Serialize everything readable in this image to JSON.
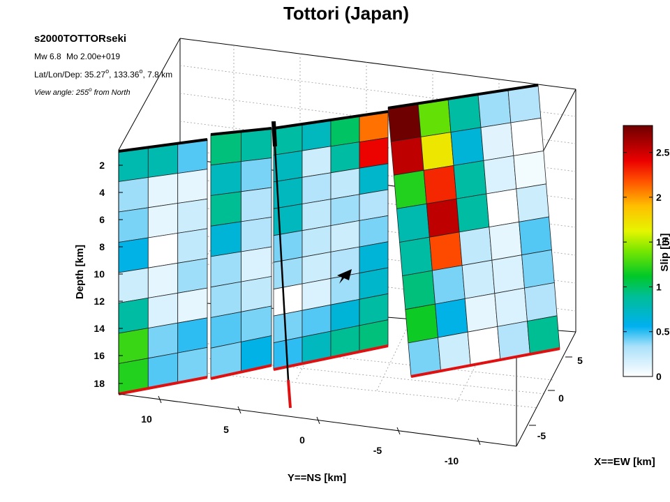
{
  "chart_data": {
    "type": "heatmap",
    "title": "Tottori (Japan)",
    "info": {
      "model": "s2000TOTTORseki",
      "magnitude": "Mw 6.8",
      "moment": "Mo 2.00e+019",
      "location_prefix": "Lat/Lon/Dep: 35.27",
      "location_mid": ", 133.36",
      "location_suffix": ", 7.8 km",
      "view_prefix": "View angle: 255",
      "view_suffix": " from North",
      "degree_symbol": "o"
    },
    "axes": {
      "depth": {
        "label": "Depth [km]",
        "ticks": [
          "2",
          "4",
          "6",
          "8",
          "10",
          "12",
          "14",
          "16",
          "18"
        ]
      },
      "ns": {
        "label": "Y==NS [km]",
        "ticks": [
          "10",
          "5",
          "0",
          "-5",
          "-10"
        ]
      },
      "ew": {
        "label": "X==EW [km]",
        "ticks": [
          "5",
          "0",
          "-5"
        ]
      }
    },
    "colorbar": {
      "label": "Slip [m]",
      "ticks": [
        "0",
        "0.5",
        "1",
        "1.5",
        "2",
        "2.5"
      ],
      "max": 2.8
    },
    "grid": true,
    "slip_segments": [
      {
        "name": "segment-1",
        "rows": [
          [
            0.8,
            0.8,
            0.45
          ],
          [
            0.35,
            0.1,
            0.1
          ],
          [
            0.4,
            0.1,
            0.2
          ],
          [
            0.6,
            0.0,
            0.25
          ],
          [
            0.2,
            0.1,
            0.35
          ],
          [
            0.85,
            0.15,
            0.1
          ],
          [
            1.25,
            0.4,
            0.5
          ],
          [
            1.2,
            0.45,
            0.4
          ]
        ]
      },
      {
        "name": "segment-2",
        "rows": [
          [
            0.95,
            0.85
          ],
          [
            0.75,
            0.4
          ],
          [
            0.9,
            0.3
          ],
          [
            0.65,
            0.3
          ],
          [
            0.35,
            0.15
          ],
          [
            0.35,
            0.25
          ],
          [
            0.45,
            0.4
          ],
          [
            0.4,
            0.6
          ]
        ]
      },
      {
        "name": "segment-3",
        "rows": [
          [
            0.85,
            0.75,
            1.0,
            2.1
          ],
          [
            0.75,
            0.2,
            0.85,
            2.4
          ],
          [
            0.75,
            0.3,
            0.25,
            0.7
          ],
          [
            0.75,
            0.25,
            0.35,
            0.3
          ],
          [
            0.4,
            0.25,
            0.2,
            0.4
          ],
          [
            0.35,
            0.2,
            0.3,
            0.65
          ],
          [
            0.0,
            0.15,
            0.35,
            0.7
          ],
          [
            0.4,
            0.45,
            0.65,
            0.85
          ],
          [
            0.5,
            0.75,
            0.9,
            0.95
          ]
        ]
      },
      {
        "name": "segment-4",
        "rows": [
          [
            2.8,
            1.35,
            0.85,
            0.35,
            0.3
          ],
          [
            2.55,
            1.7,
            0.65,
            0.12,
            0.0
          ],
          [
            1.2,
            2.3,
            0.85,
            0.15,
            0.05
          ],
          [
            0.8,
            2.55,
            0.85,
            0.0,
            0.2
          ],
          [
            0.85,
            2.2,
            0.25,
            0.1,
            0.45
          ],
          [
            0.95,
            0.4,
            0.2,
            0.15,
            0.4
          ],
          [
            1.15,
            0.6,
            0.1,
            0.15,
            0.3
          ],
          [
            0.4,
            0.2,
            0.0,
            0.3,
            0.9
          ]
        ]
      }
    ],
    "hypocenter": {
      "symbol": "star",
      "ns_km": 0,
      "ew_km": 0,
      "depth_km": 7.8
    },
    "colors": {
      "top_edge": "#000000",
      "bottom_edge": "#e01010",
      "hypocenter": "#000000",
      "cell_border": "#222222",
      "box": "#000000"
    }
  }
}
